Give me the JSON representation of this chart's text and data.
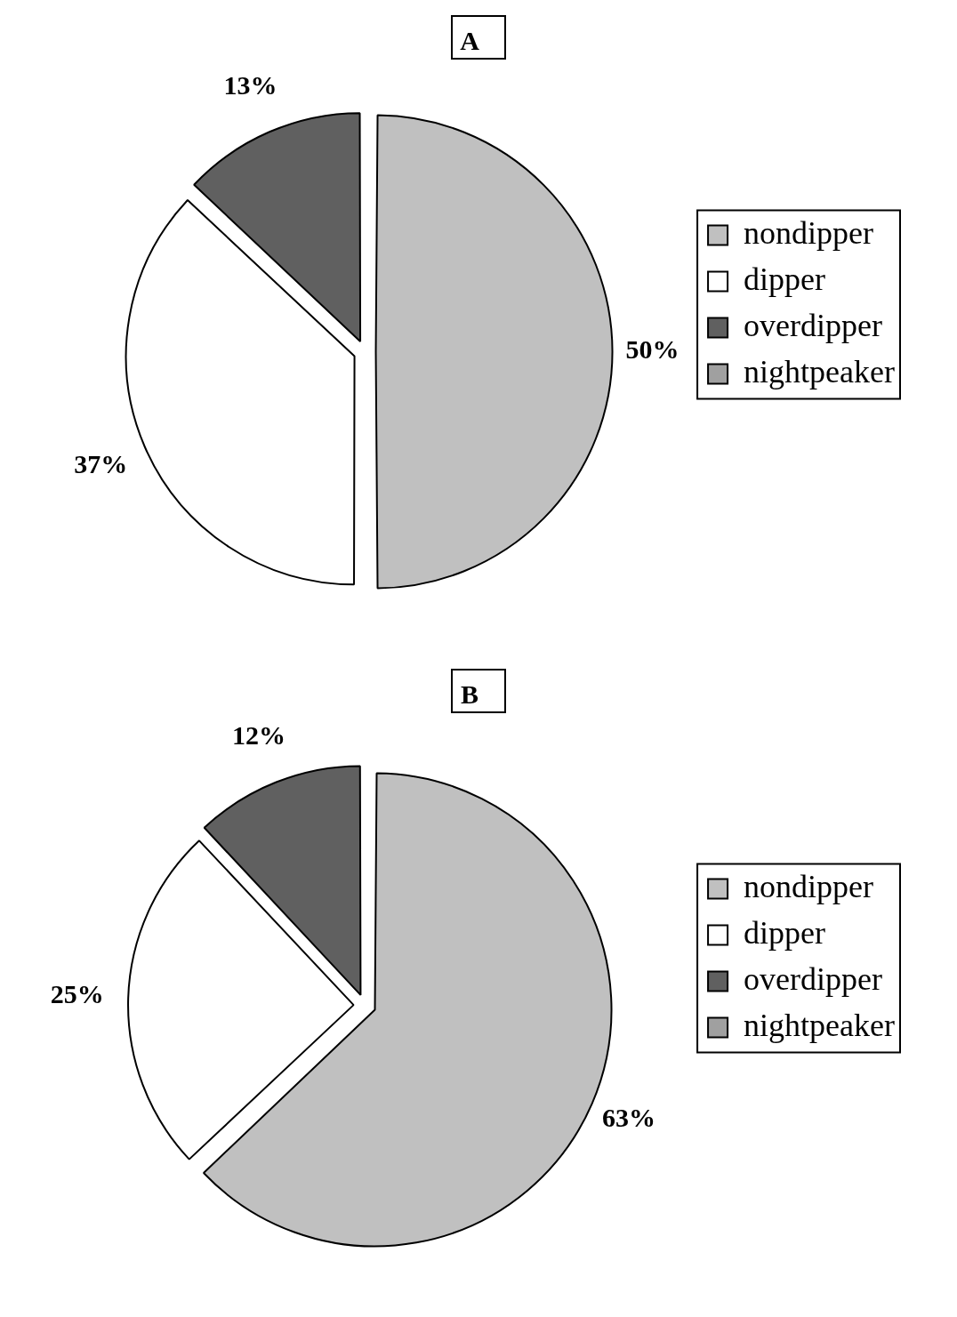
{
  "chart_data": [
    {
      "type": "pie",
      "title": "A",
      "categories": [
        "nondipper",
        "dipper",
        "overdipper",
        "nightpeaker"
      ],
      "values": [
        50,
        37,
        13,
        0
      ],
      "colors": [
        "#c0c0c0",
        "#ffffff",
        "#606060",
        "#a0a0a0"
      ],
      "value_labels": [
        "50%",
        "37%",
        "13%",
        null
      ],
      "legend": "right"
    },
    {
      "type": "pie",
      "title": "B",
      "categories": [
        "nondipper",
        "dipper",
        "overdipper",
        "nightpeaker"
      ],
      "values": [
        63,
        25,
        12,
        0
      ],
      "colors": [
        "#c0c0c0",
        "#ffffff",
        "#606060",
        "#a0a0a0"
      ],
      "value_labels": [
        "63%",
        "25%",
        "12%",
        null
      ],
      "legend": "right"
    }
  ]
}
